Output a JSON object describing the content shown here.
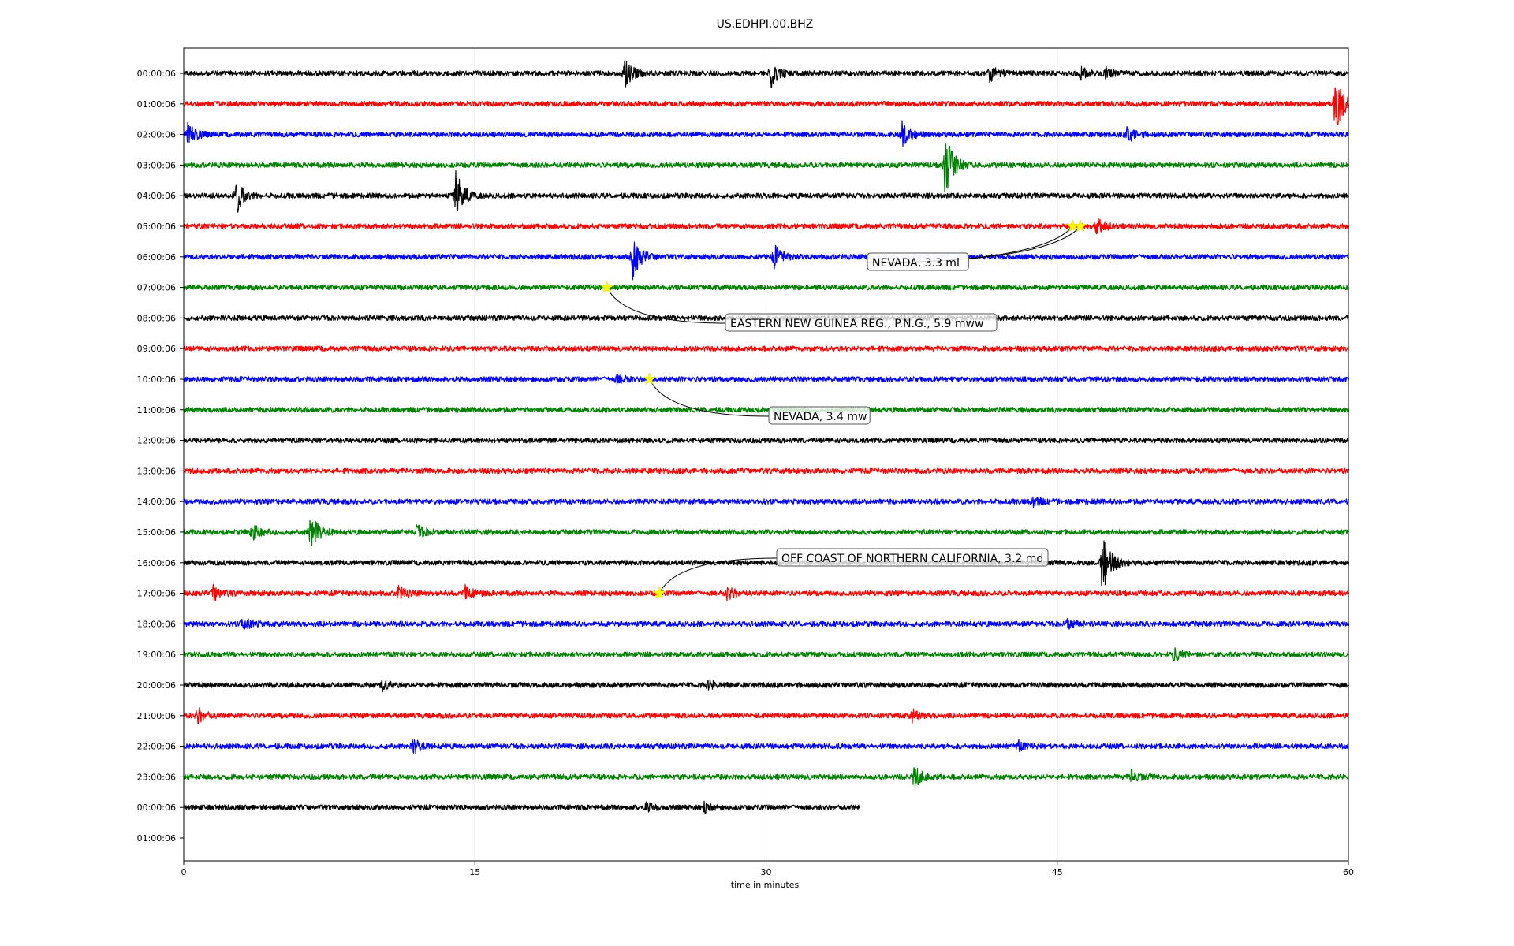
{
  "chart_data": {
    "type": "line",
    "title": "US.EDHPI.00.BHZ",
    "xlabel": "time in minutes",
    "ylabel": "",
    "xlim": [
      0,
      60
    ],
    "x_ticks": [
      0,
      15,
      30,
      45,
      60
    ],
    "x_tick_labels": [
      "0",
      "15",
      "30",
      "45",
      "60"
    ],
    "grid": "vertical",
    "trace_colors": [
      "#000000",
      "#ff0000",
      "#0000ff",
      "#008000"
    ],
    "rows": [
      {
        "label": "00:00:06",
        "color": "#000000",
        "end_min": 60,
        "events": [
          {
            "t": 22.7,
            "amp": 0.7
          },
          {
            "t": 30.2,
            "amp": 0.65
          },
          {
            "t": 41.5,
            "amp": 0.35
          },
          {
            "t": 46.2,
            "amp": 0.25
          },
          {
            "t": 47.5,
            "amp": 0.2
          }
        ]
      },
      {
        "label": "01:00:06",
        "color": "#ff0000",
        "end_min": 60,
        "events": [
          {
            "t": 59.3,
            "amp": 1.4
          }
        ]
      },
      {
        "label": "02:00:06",
        "color": "#0000ff",
        "end_min": 60,
        "events": [
          {
            "t": 0.2,
            "amp": 0.5
          },
          {
            "t": 37.0,
            "amp": 0.6
          },
          {
            "t": 48.6,
            "amp": 0.35
          }
        ]
      },
      {
        "label": "03:00:06",
        "color": "#008000",
        "end_min": 60,
        "events": [
          {
            "t": 39.2,
            "amp": 1.6
          }
        ]
      },
      {
        "label": "04:00:06",
        "color": "#000000",
        "end_min": 60,
        "events": [
          {
            "t": 2.7,
            "amp": 0.8
          },
          {
            "t": 14.0,
            "amp": 1.1
          }
        ]
      },
      {
        "label": "05:00:06",
        "color": "#ff0000",
        "end_min": 60,
        "events": [
          {
            "t": 47.0,
            "amp": 0.4
          }
        ]
      },
      {
        "label": "06:00:06",
        "color": "#0000ff",
        "end_min": 60,
        "events": [
          {
            "t": 23.1,
            "amp": 1.0
          },
          {
            "t": 30.4,
            "amp": 0.5
          }
        ]
      },
      {
        "label": "07:00:06",
        "color": "#008000",
        "end_min": 60,
        "events": []
      },
      {
        "label": "08:00:06",
        "color": "#000000",
        "end_min": 60,
        "events": []
      },
      {
        "label": "09:00:06",
        "color": "#ff0000",
        "end_min": 60,
        "events": []
      },
      {
        "label": "10:00:06",
        "color": "#0000ff",
        "end_min": 60,
        "events": [
          {
            "t": 22.3,
            "amp": 0.2
          }
        ]
      },
      {
        "label": "11:00:06",
        "color": "#008000",
        "end_min": 60,
        "events": []
      },
      {
        "label": "12:00:06",
        "color": "#000000",
        "end_min": 60,
        "events": []
      },
      {
        "label": "13:00:06",
        "color": "#ff0000",
        "end_min": 60,
        "events": []
      },
      {
        "label": "14:00:06",
        "color": "#0000ff",
        "end_min": 60,
        "events": [
          {
            "t": 43.7,
            "amp": 0.2
          }
        ]
      },
      {
        "label": "15:00:06",
        "color": "#008000",
        "end_min": 60,
        "events": [
          {
            "t": 6.5,
            "amp": 0.9
          },
          {
            "t": 3.5,
            "amp": 0.4
          },
          {
            "t": 12.0,
            "amp": 0.3
          }
        ]
      },
      {
        "label": "16:00:06",
        "color": "#000000",
        "end_min": 60,
        "events": [
          {
            "t": 47.3,
            "amp": 1.5
          }
        ]
      },
      {
        "label": "17:00:06",
        "color": "#ff0000",
        "end_min": 60,
        "events": [
          {
            "t": 1.5,
            "amp": 0.35
          },
          {
            "t": 11.0,
            "amp": 0.35
          },
          {
            "t": 14.5,
            "amp": 0.3
          },
          {
            "t": 28.0,
            "amp": 0.3
          }
        ]
      },
      {
        "label": "18:00:06",
        "color": "#0000ff",
        "end_min": 60,
        "events": [
          {
            "t": 3.0,
            "amp": 0.35
          },
          {
            "t": 45.5,
            "amp": 0.2
          }
        ]
      },
      {
        "label": "19:00:06",
        "color": "#008000",
        "end_min": 60,
        "events": [
          {
            "t": 51.0,
            "amp": 0.25
          }
        ]
      },
      {
        "label": "20:00:06",
        "color": "#000000",
        "end_min": 60,
        "events": [
          {
            "t": 10.2,
            "amp": 0.25
          },
          {
            "t": 27.0,
            "amp": 0.2
          }
        ]
      },
      {
        "label": "21:00:06",
        "color": "#ff0000",
        "end_min": 60,
        "events": [
          {
            "t": 0.7,
            "amp": 0.35
          },
          {
            "t": 37.5,
            "amp": 0.25
          }
        ]
      },
      {
        "label": "22:00:06",
        "color": "#0000ff",
        "end_min": 60,
        "events": [
          {
            "t": 11.8,
            "amp": 0.3
          },
          {
            "t": 43.0,
            "amp": 0.2
          }
        ]
      },
      {
        "label": "23:00:06",
        "color": "#008000",
        "end_min": 60,
        "events": [
          {
            "t": 37.6,
            "amp": 0.5
          },
          {
            "t": 48.8,
            "amp": 0.3
          }
        ]
      },
      {
        "label": "00:00:06",
        "color": "#000000",
        "end_min": 34.8,
        "events": [
          {
            "t": 23.8,
            "amp": 0.2
          },
          {
            "t": 26.8,
            "amp": 0.2
          }
        ]
      },
      {
        "label": "01:00:06",
        "color": "#000000",
        "end_min": 0,
        "events": []
      }
    ],
    "annotations": [
      {
        "text": "NEVADA, 3.3 ml",
        "star_row": 5,
        "star_min": 45.8
      },
      {
        "text": "NEVADA, 3.3 ml",
        "star_row": 5,
        "star_min": 46.2
      },
      {
        "text": "EASTERN NEW GUINEA REG., P.N.G., 5.9 mww",
        "star_row": 7,
        "star_min": 21.8
      },
      {
        "text": "NEVADA, 3.4 mw",
        "star_row": 10,
        "star_min": 24.0
      },
      {
        "text": "OFF COAST OF NORTHERN CALIFORNIA, 3.2 md",
        "star_row": 17,
        "star_min": 24.5
      }
    ],
    "star_color": "#ffff00"
  }
}
